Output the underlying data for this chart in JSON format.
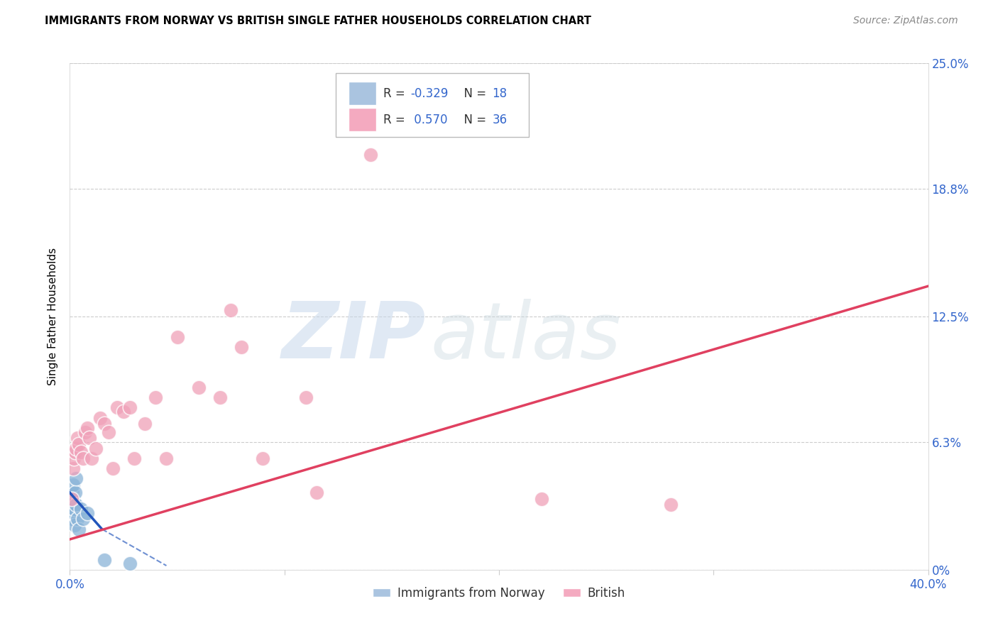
{
  "title": "IMMIGRANTS FROM NORWAY VS BRITISH SINGLE FATHER HOUSEHOLDS CORRELATION CHART",
  "source": "Source: ZipAtlas.com",
  "ylabel": "Single Father Households",
  "xlim": [
    0.0,
    40.0
  ],
  "ylim": [
    0.0,
    25.0
  ],
  "yticks": [
    0.0,
    6.3,
    12.5,
    18.8,
    25.0
  ],
  "ytick_labels_right": [
    "0%",
    "6.3%",
    "12.5%",
    "18.8%",
    "25.0%"
  ],
  "norway_color": "#8ab4d8",
  "british_color": "#f0a0b8",
  "norway_line_color": "#2255bb",
  "british_line_color": "#e04060",
  "norway_x": [
    0.08,
    0.1,
    0.12,
    0.14,
    0.16,
    0.18,
    0.2,
    0.22,
    0.25,
    0.28,
    0.3,
    0.35,
    0.4,
    0.5,
    0.6,
    0.8,
    1.6,
    2.8
  ],
  "norway_y": [
    3.2,
    2.5,
    3.8,
    4.2,
    3.5,
    2.8,
    3.0,
    2.2,
    3.8,
    4.5,
    3.2,
    2.5,
    2.0,
    3.0,
    2.5,
    2.8,
    0.5,
    0.3
  ],
  "british_x": [
    0.1,
    0.15,
    0.2,
    0.25,
    0.3,
    0.35,
    0.4,
    0.5,
    0.6,
    0.7,
    0.8,
    0.9,
    1.0,
    1.2,
    1.4,
    1.6,
    1.8,
    2.0,
    2.2,
    2.5,
    2.8,
    3.0,
    3.5,
    4.0,
    4.5,
    5.0,
    6.0,
    7.0,
    8.0,
    9.0,
    11.0,
    14.0,
    22.0,
    28.0,
    7.5,
    11.5
  ],
  "british_y": [
    3.5,
    5.0,
    5.5,
    5.8,
    6.0,
    6.5,
    6.2,
    5.8,
    5.5,
    6.8,
    7.0,
    6.5,
    5.5,
    6.0,
    7.5,
    7.2,
    6.8,
    5.0,
    8.0,
    7.8,
    8.0,
    5.5,
    7.2,
    8.5,
    5.5,
    11.5,
    9.0,
    8.5,
    11.0,
    5.5,
    8.5,
    20.5,
    3.5,
    3.2,
    12.8,
    3.8
  ],
  "british_line_x": [
    0.0,
    40.0
  ],
  "british_line_y": [
    1.5,
    14.0
  ],
  "norway_line_x0": 0.0,
  "norway_line_x_solid_end": 1.5,
  "norway_line_x_dash_end": 4.5,
  "norway_line_y0": 3.8,
  "norway_line_y_solid_end": 2.0,
  "norway_line_y_dash_end": 0.2
}
